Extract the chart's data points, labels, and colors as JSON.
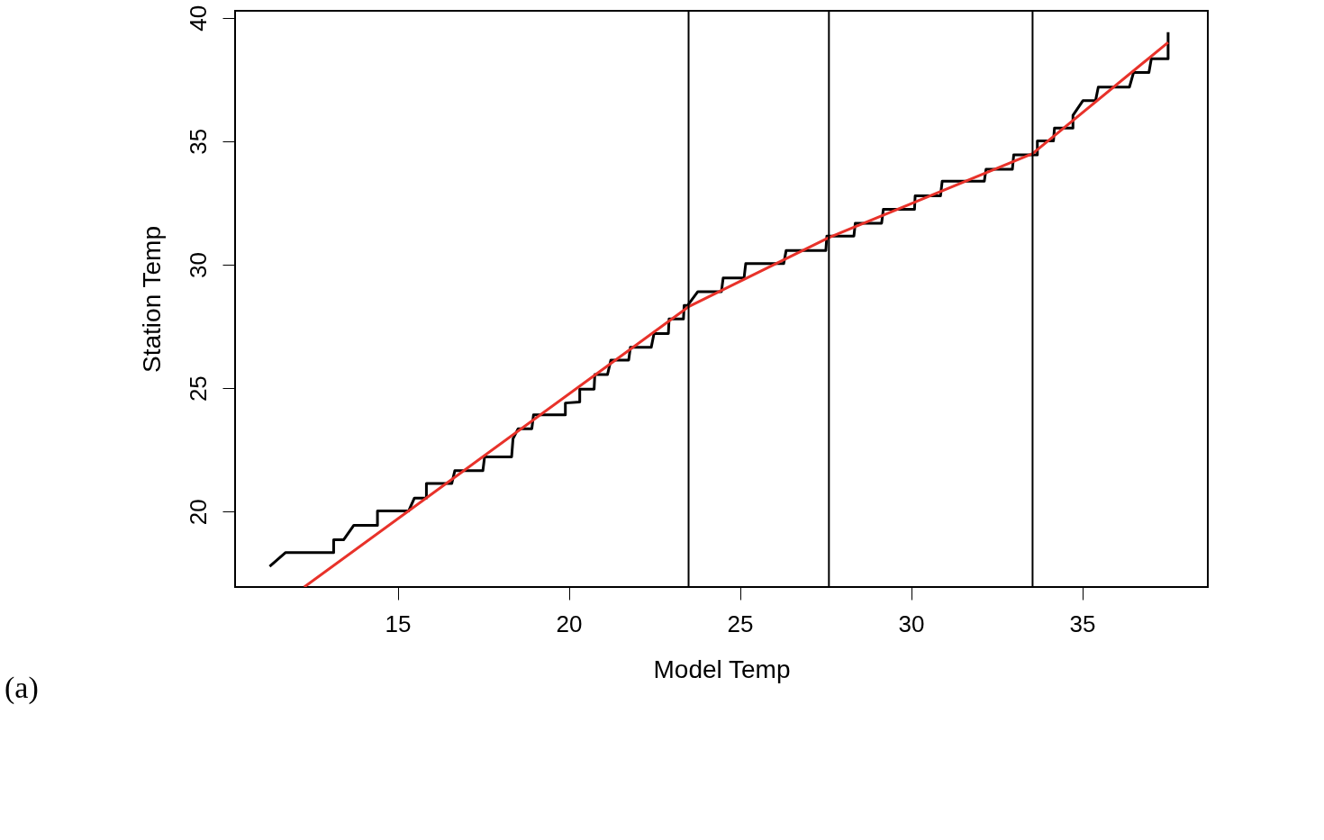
{
  "chart_data": {
    "type": "line",
    "xlabel": "Model Temp",
    "ylabel": "Station Temp",
    "annotations": [
      "(a)"
    ],
    "xlim": [
      10.25,
      38.67
    ],
    "ylim": [
      16.95,
      40.28
    ],
    "xticks": [
      15,
      20,
      25,
      30,
      35
    ],
    "yticks": [
      20,
      25,
      30,
      35,
      40
    ],
    "grid": false,
    "line_style": "solid",
    "ref_lines": [
      {
        "axis": "x",
        "value": 23.5,
        "color": "#000000"
      },
      {
        "axis": "x",
        "value": 27.6,
        "color": "#000000"
      },
      {
        "axis": "x",
        "value": 33.55,
        "color": "#000000"
      }
    ],
    "series": [
      {
        "color": "#000000",
        "x": [
          11.26,
          11.72,
          13.13,
          13.13,
          13.42,
          13.72,
          14.41,
          14.41,
          15.32,
          15.49,
          15.84,
          15.84,
          16.58,
          16.67,
          17.49,
          17.54,
          18.33,
          18.37,
          18.52,
          18.92,
          18.97,
          19.9,
          19.9,
          20.32,
          20.32,
          20.74,
          20.76,
          21.13,
          21.23,
          21.75,
          21.8,
          22.41,
          22.49,
          22.91,
          22.93,
          23.35,
          23.37,
          23.47,
          23.77,
          24.46,
          24.51,
          25.12,
          25.17,
          26.28,
          26.35,
          27.51,
          27.54,
          28.33,
          28.37,
          29.14,
          29.19,
          30.1,
          30.12,
          30.86,
          30.91,
          32.14,
          32.19,
          32.96,
          33.0,
          33.69,
          33.69,
          34.16,
          34.19,
          34.73,
          34.73,
          35.02,
          35.39,
          35.47,
          36.38,
          36.5,
          36.95,
          37.02,
          37.51,
          37.51
        ],
        "values": [
          17.78,
          18.34,
          18.34,
          18.86,
          18.86,
          19.45,
          19.45,
          20.03,
          20.03,
          20.55,
          20.55,
          21.14,
          21.14,
          21.66,
          21.66,
          22.22,
          22.22,
          22.95,
          23.36,
          23.36,
          23.92,
          23.92,
          24.4,
          24.44,
          24.96,
          24.96,
          25.55,
          25.55,
          26.14,
          26.14,
          26.66,
          26.66,
          27.21,
          27.21,
          27.8,
          27.8,
          28.35,
          28.35,
          28.91,
          28.91,
          29.46,
          29.46,
          30.05,
          30.05,
          30.57,
          30.57,
          31.16,
          31.16,
          31.68,
          31.68,
          32.24,
          32.24,
          32.79,
          32.79,
          33.38,
          33.38,
          33.86,
          33.86,
          34.45,
          34.45,
          35.01,
          35.01,
          35.53,
          35.53,
          36.05,
          36.64,
          36.64,
          37.19,
          37.19,
          37.78,
          37.78,
          38.34,
          38.34,
          39.41
        ]
      },
      {
        "color": "#e8322a",
        "x": [
          12.27,
          23.5,
          27.6,
          33.55,
          37.51
        ],
        "values": [
          16.95,
          28.3,
          31.1,
          34.5,
          39.0
        ]
      }
    ]
  }
}
